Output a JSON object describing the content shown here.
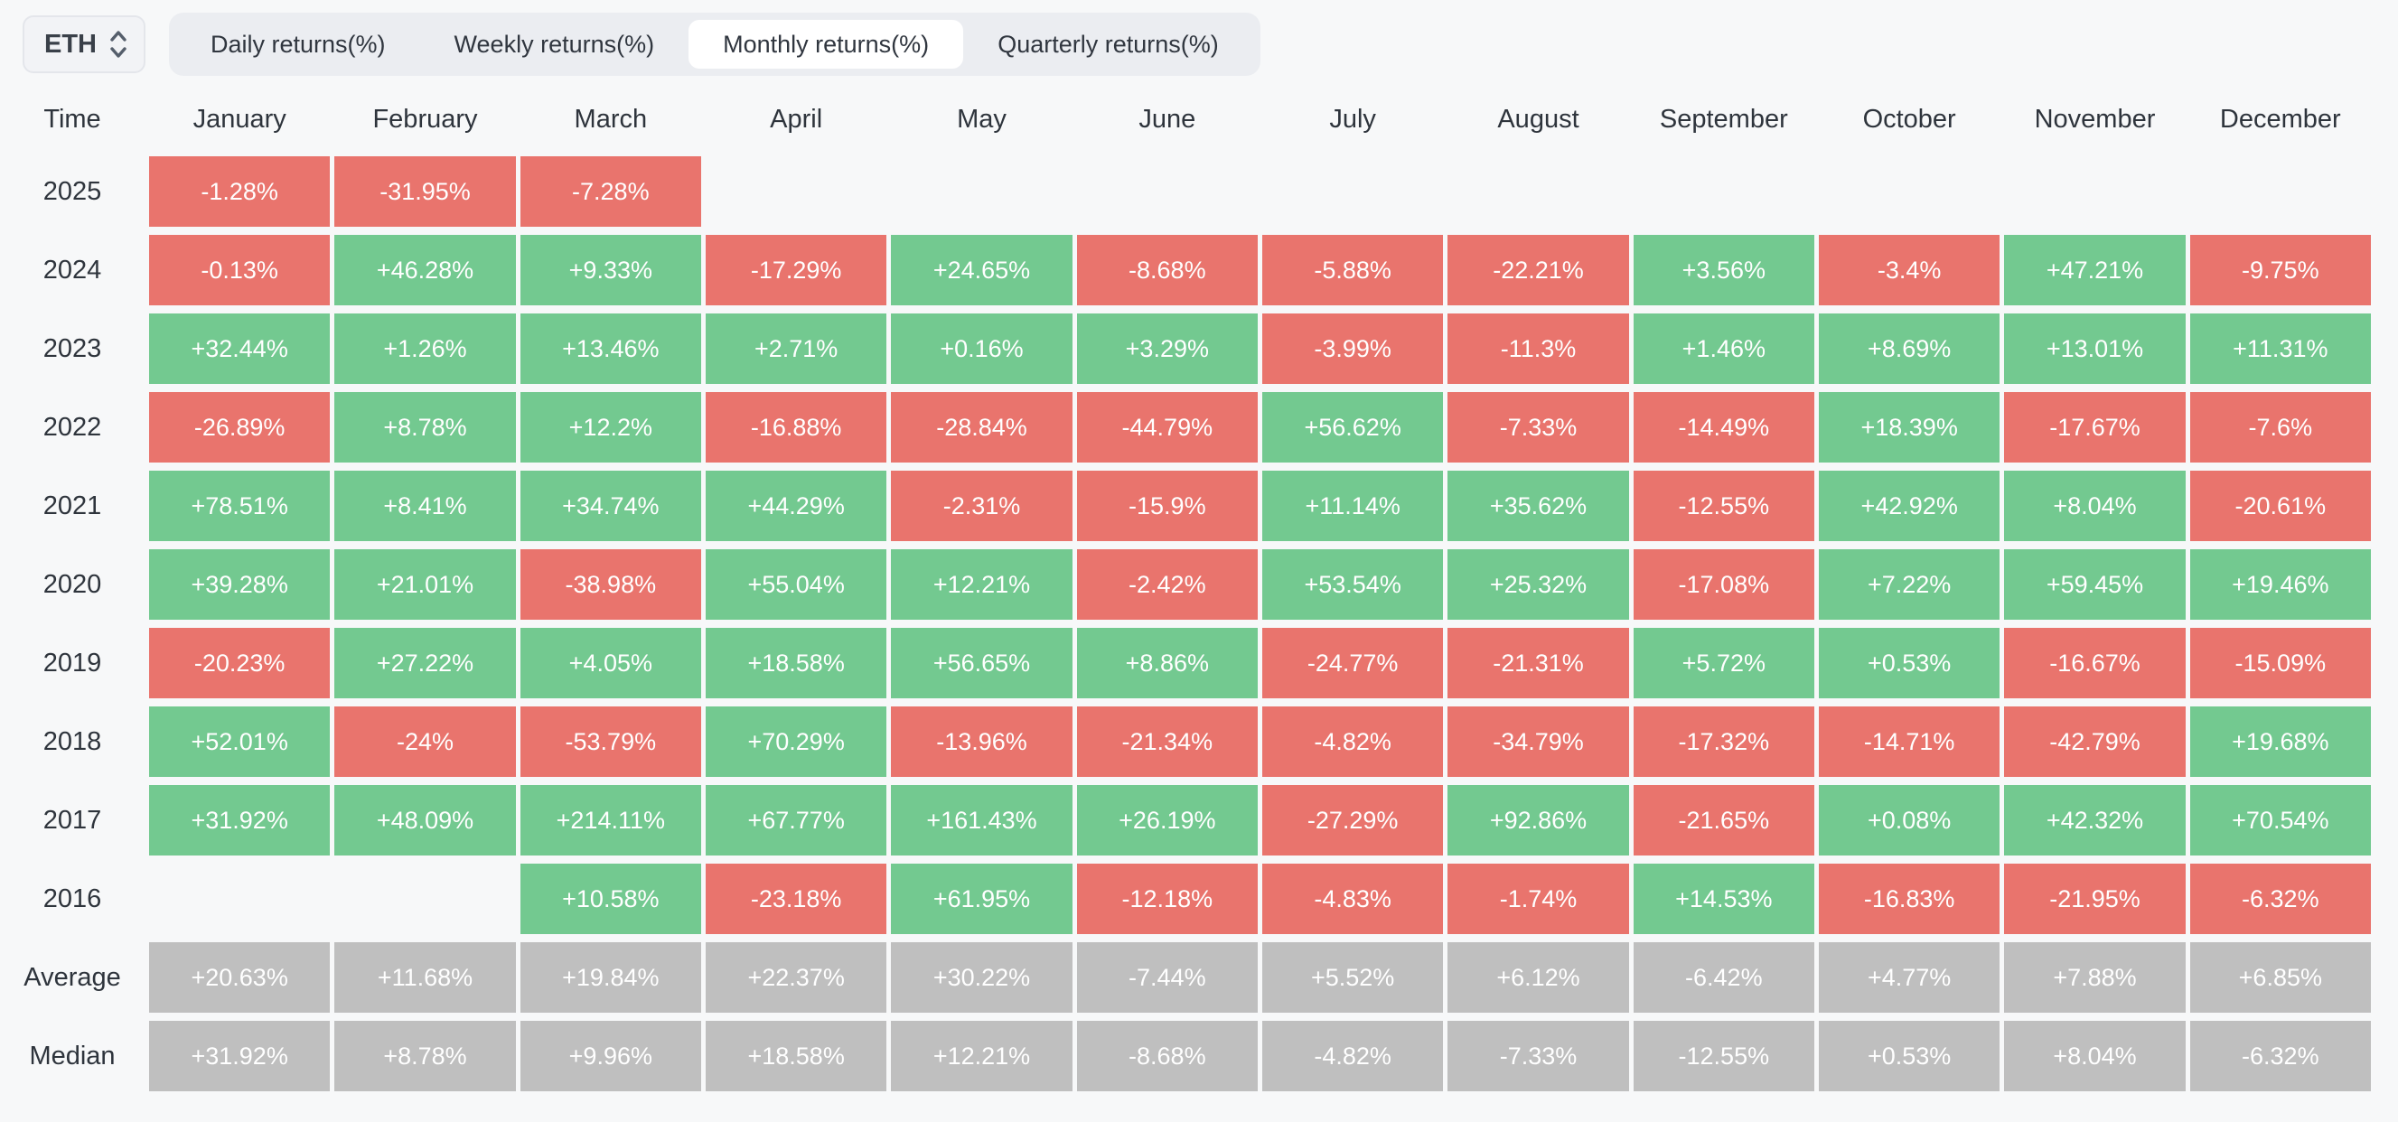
{
  "page": {
    "background": "#f7f8f9"
  },
  "controls": {
    "asset_selector": {
      "value": "ETH",
      "icon": "updown-chevron-icon"
    },
    "tabs": [
      {
        "label": "Daily returns(%)",
        "active": false
      },
      {
        "label": "Weekly returns(%)",
        "active": false
      },
      {
        "label": "Monthly returns(%)",
        "active": true
      },
      {
        "label": "Quarterly returns(%)",
        "active": false
      }
    ]
  },
  "table": {
    "corner_label": "Time",
    "columns": [
      "January",
      "February",
      "March",
      "April",
      "May",
      "June",
      "July",
      "August",
      "September",
      "October",
      "November",
      "December"
    ],
    "rows": [
      {
        "label": "2025",
        "type": "year",
        "values": [
          "-1.28%",
          "-31.95%",
          "-7.28%",
          "",
          "",
          "",
          "",
          "",
          "",
          "",
          "",
          ""
        ]
      },
      {
        "label": "2024",
        "type": "year",
        "values": [
          "-0.13%",
          "+46.28%",
          "+9.33%",
          "-17.29%",
          "+24.65%",
          "-8.68%",
          "-5.88%",
          "-22.21%",
          "+3.56%",
          "-3.4%",
          "+47.21%",
          "-9.75%"
        ]
      },
      {
        "label": "2023",
        "type": "year",
        "values": [
          "+32.44%",
          "+1.26%",
          "+13.46%",
          "+2.71%",
          "+0.16%",
          "+3.29%",
          "-3.99%",
          "-11.3%",
          "+1.46%",
          "+8.69%",
          "+13.01%",
          "+11.31%"
        ]
      },
      {
        "label": "2022",
        "type": "year",
        "values": [
          "-26.89%",
          "+8.78%",
          "+12.2%",
          "-16.88%",
          "-28.84%",
          "-44.79%",
          "+56.62%",
          "-7.33%",
          "-14.49%",
          "+18.39%",
          "-17.67%",
          "-7.6%"
        ]
      },
      {
        "label": "2021",
        "type": "year",
        "values": [
          "+78.51%",
          "+8.41%",
          "+34.74%",
          "+44.29%",
          "-2.31%",
          "-15.9%",
          "+11.14%",
          "+35.62%",
          "-12.55%",
          "+42.92%",
          "+8.04%",
          "-20.61%"
        ]
      },
      {
        "label": "2020",
        "type": "year",
        "values": [
          "+39.28%",
          "+21.01%",
          "-38.98%",
          "+55.04%",
          "+12.21%",
          "-2.42%",
          "+53.54%",
          "+25.32%",
          "-17.08%",
          "+7.22%",
          "+59.45%",
          "+19.46%"
        ]
      },
      {
        "label": "2019",
        "type": "year",
        "values": [
          "-20.23%",
          "+27.22%",
          "+4.05%",
          "+18.58%",
          "+56.65%",
          "+8.86%",
          "-24.77%",
          "-21.31%",
          "+5.72%",
          "+0.53%",
          "-16.67%",
          "-15.09%"
        ]
      },
      {
        "label": "2018",
        "type": "year",
        "values": [
          "+52.01%",
          "-24%",
          "-53.79%",
          "+70.29%",
          "-13.96%",
          "-21.34%",
          "-4.82%",
          "-34.79%",
          "-17.32%",
          "-14.71%",
          "-42.79%",
          "+19.68%"
        ]
      },
      {
        "label": "2017",
        "type": "year",
        "values": [
          "+31.92%",
          "+48.09%",
          "+214.11%",
          "+67.77%",
          "+161.43%",
          "+26.19%",
          "-27.29%",
          "+92.86%",
          "-21.65%",
          "+0.08%",
          "+42.32%",
          "+70.54%"
        ]
      },
      {
        "label": "2016",
        "type": "year",
        "values": [
          "",
          "",
          "+10.58%",
          "-23.18%",
          "+61.95%",
          "-12.18%",
          "-4.83%",
          "-1.74%",
          "+14.53%",
          "-16.83%",
          "-21.95%",
          "-6.32%"
        ]
      },
      {
        "label": "Average",
        "type": "summary",
        "values": [
          "+20.63%",
          "+11.68%",
          "+19.84%",
          "+22.37%",
          "+30.22%",
          "-7.44%",
          "+5.52%",
          "+6.12%",
          "-6.42%",
          "+4.77%",
          "+7.88%",
          "+6.85%"
        ]
      },
      {
        "label": "Median",
        "type": "summary",
        "values": [
          "+31.92%",
          "+8.78%",
          "+9.96%",
          "+18.58%",
          "+12.21%",
          "-8.68%",
          "-4.82%",
          "-7.33%",
          "-12.55%",
          "+0.53%",
          "+8.04%",
          "-6.32%"
        ]
      }
    ]
  },
  "colors": {
    "positive_bg": "#73c990",
    "negative_bg": "#e9746d",
    "summary_bg": "#bfbfbf",
    "cell_text": "#ffffff",
    "text_dark": "#2e343c",
    "tab_bar_bg": "#ebedf1",
    "active_tab_bg": "#ffffff",
    "page_bg": "#f7f8f9"
  },
  "chart_data": {
    "type": "heatmap",
    "title": "ETH Monthly returns(%)",
    "units": "percent",
    "columns": [
      "January",
      "February",
      "March",
      "April",
      "May",
      "June",
      "July",
      "August",
      "September",
      "October",
      "November",
      "December"
    ],
    "rows": [
      {
        "label": "2025",
        "values": [
          -1.28,
          -31.95,
          -7.28,
          null,
          null,
          null,
          null,
          null,
          null,
          null,
          null,
          null
        ]
      },
      {
        "label": "2024",
        "values": [
          -0.13,
          46.28,
          9.33,
          -17.29,
          24.65,
          -8.68,
          -5.88,
          -22.21,
          3.56,
          -3.4,
          47.21,
          -9.75
        ]
      },
      {
        "label": "2023",
        "values": [
          32.44,
          1.26,
          13.46,
          2.71,
          0.16,
          3.29,
          -3.99,
          -11.3,
          1.46,
          8.69,
          13.01,
          11.31
        ]
      },
      {
        "label": "2022",
        "values": [
          -26.89,
          8.78,
          12.2,
          -16.88,
          -28.84,
          -44.79,
          56.62,
          -7.33,
          -14.49,
          18.39,
          -17.67,
          -7.6
        ]
      },
      {
        "label": "2021",
        "values": [
          78.51,
          8.41,
          34.74,
          44.29,
          -2.31,
          -15.9,
          11.14,
          35.62,
          -12.55,
          42.92,
          8.04,
          -20.61
        ]
      },
      {
        "label": "2020",
        "values": [
          39.28,
          21.01,
          -38.98,
          55.04,
          12.21,
          -2.42,
          53.54,
          25.32,
          -17.08,
          7.22,
          59.45,
          19.46
        ]
      },
      {
        "label": "2019",
        "values": [
          -20.23,
          27.22,
          4.05,
          18.58,
          56.65,
          8.86,
          -24.77,
          -21.31,
          5.72,
          0.53,
          -16.67,
          -15.09
        ]
      },
      {
        "label": "2018",
        "values": [
          52.01,
          -24,
          -53.79,
          70.29,
          -13.96,
          -21.34,
          -4.82,
          -34.79,
          -17.32,
          -14.71,
          -42.79,
          19.68
        ]
      },
      {
        "label": "2017",
        "values": [
          31.92,
          48.09,
          214.11,
          67.77,
          161.43,
          26.19,
          -27.29,
          92.86,
          -21.65,
          0.08,
          42.32,
          70.54
        ]
      },
      {
        "label": "2016",
        "values": [
          null,
          null,
          10.58,
          -23.18,
          61.95,
          -12.18,
          -4.83,
          -1.74,
          14.53,
          -16.83,
          -21.95,
          -6.32
        ]
      },
      {
        "label": "Average",
        "values": [
          20.63,
          11.68,
          19.84,
          22.37,
          30.22,
          -7.44,
          5.52,
          6.12,
          -6.42,
          4.77,
          7.88,
          6.85
        ]
      },
      {
        "label": "Median",
        "values": [
          31.92,
          8.78,
          9.96,
          18.58,
          12.21,
          -8.68,
          -4.82,
          -7.33,
          -12.55,
          0.53,
          8.04,
          -6.32
        ]
      }
    ],
    "color_rule": {
      "positive": "#73c990",
      "negative": "#e9746d",
      "summary_rows": "#bfbfbf",
      "empty": "transparent"
    },
    "legend": "off",
    "grid": "off"
  }
}
